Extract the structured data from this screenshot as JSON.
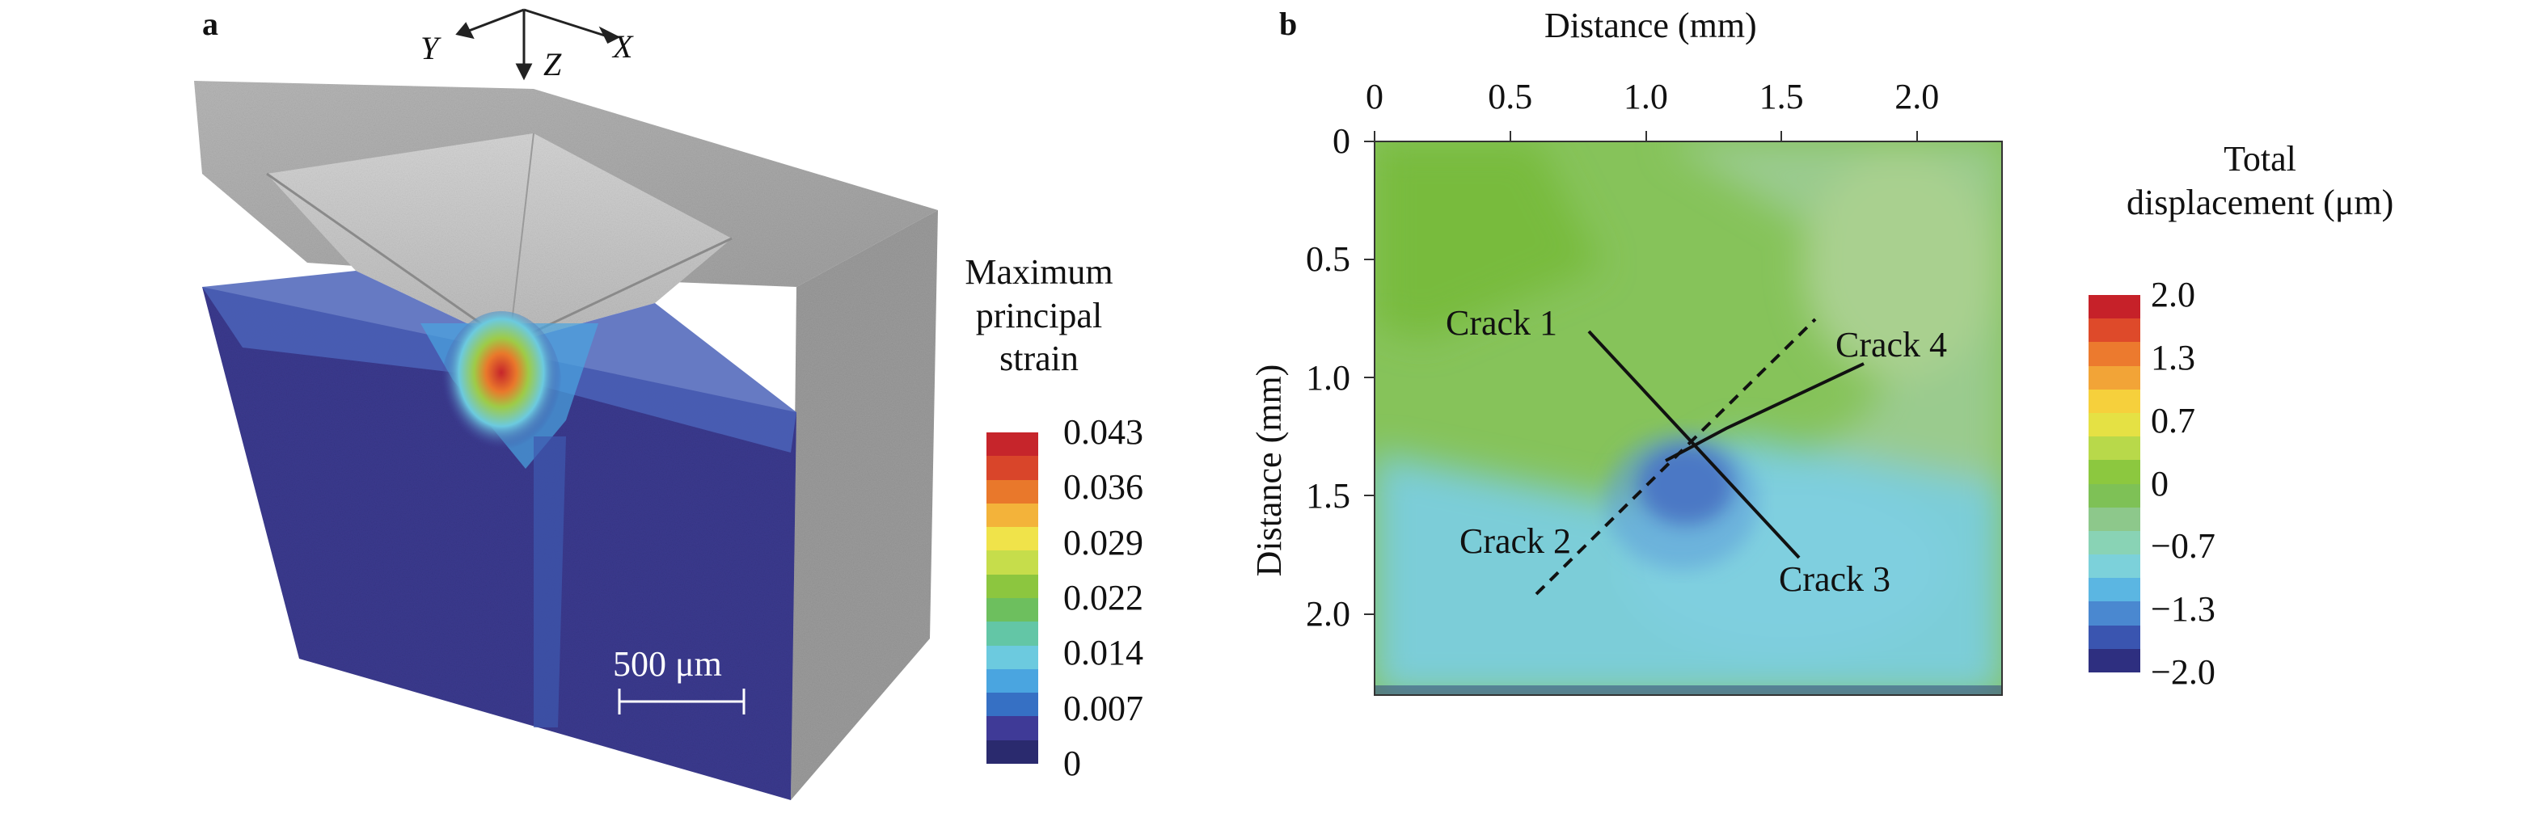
{
  "panel_a": {
    "label": "a",
    "axes": {
      "y": "Y",
      "z": "Z",
      "x": "X"
    },
    "scale_bar": "500 μm",
    "colorbar": {
      "title_lines": [
        "Maximum",
        "principal",
        "strain"
      ],
      "ticks": [
        "0.043",
        "0.036",
        "0.029",
        "0.022",
        "0.014",
        "0.007",
        "0"
      ],
      "colors": [
        "#c6252b",
        "#d9452a",
        "#e9782b",
        "#f3b33a",
        "#f0e34a",
        "#c6dd4b",
        "#8cc63f",
        "#6dbf5e",
        "#63c6a6",
        "#6ccadf",
        "#4aa5e0",
        "#3670c4",
        "#3f3a97",
        "#2a2a6e"
      ]
    }
  },
  "panel_b": {
    "label": "b",
    "xlabel": "Distance (mm)",
    "ylabel": "Distance (mm)",
    "xticks": [
      "0",
      "0.5",
      "1.0",
      "1.5",
      "2.0"
    ],
    "yticks": [
      "0",
      "0.5",
      "1.0",
      "1.5",
      "2.0"
    ],
    "cracks": [
      "Crack 1",
      "Crack 2",
      "Crack 3",
      "Crack 4"
    ],
    "colorbar": {
      "title_lines": [
        "Total",
        "displacement (μm)"
      ],
      "ticks": [
        "2.0",
        "1.3",
        "0.7",
        "0",
        "−0.7",
        "−1.3",
        "−2.0"
      ],
      "colors": [
        "#c62129",
        "#de4a2a",
        "#ec7a2e",
        "#f2a437",
        "#f6d03c",
        "#e5e144",
        "#b8d94a",
        "#8cc83f",
        "#7ec156",
        "#8dc88b",
        "#89d3b5",
        "#7cd1da",
        "#5bb6e2",
        "#4a88d0",
        "#3a55b0",
        "#2e2f80"
      ]
    }
  }
}
